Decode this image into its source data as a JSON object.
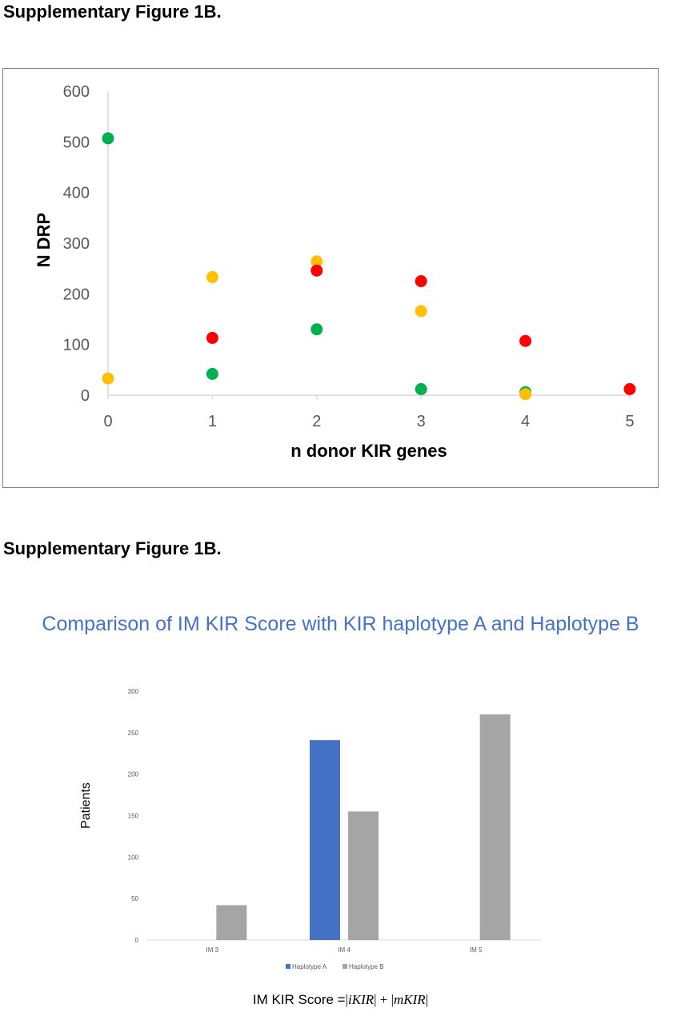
{
  "headings": {
    "top": "Supplementary Figure 1B.",
    "bottom": "Supplementary Figure 1B."
  },
  "chart_data": [
    {
      "type": "scatter",
      "xlabel": "n donor KIR genes",
      "ylabel": "N DRP",
      "xlim": [
        0,
        5
      ],
      "ylim": [
        0,
        600
      ],
      "x_ticks": [
        "0",
        "1",
        "2",
        "3",
        "4",
        "5"
      ],
      "y_ticks": [
        "0",
        "100",
        "200",
        "300",
        "400",
        "500",
        "600"
      ],
      "grid": false,
      "series": [
        {
          "color": "#00B050",
          "points": [
            [
              0,
              507
            ],
            [
              1,
              42
            ],
            [
              2,
              130
            ],
            [
              3,
              12
            ],
            [
              4,
              6
            ]
          ]
        },
        {
          "color": "#FFC000",
          "points": [
            [
              0,
              33
            ],
            [
              1,
              233
            ],
            [
              2,
              264
            ],
            [
              3,
              166
            ],
            [
              4,
              2
            ]
          ]
        },
        {
          "color": "#FF0000",
          "points": [
            [
              1,
              113
            ],
            [
              2,
              246
            ],
            [
              3,
              225
            ],
            [
              4,
              107
            ],
            [
              5,
              12
            ]
          ]
        }
      ]
    },
    {
      "type": "bar",
      "title": "Comparison of IM KIR Score with KIR haplotype A and Haplotype B",
      "categories": [
        "IM 3",
        "IM 4",
        "IM 5"
      ],
      "ylabel": "Patients",
      "ylim": [
        0,
        300
      ],
      "y_ticks": [
        "0",
        "50",
        "100",
        "150",
        "200",
        "250",
        "300"
      ],
      "grid": false,
      "legend": "bottom",
      "series": [
        {
          "name": "Haplotype A",
          "color": "#4472C4",
          "values": [
            0,
            241,
            0
          ]
        },
        {
          "name": "Haplotype B",
          "color": "#A5A5A5",
          "values": [
            42,
            155,
            272
          ]
        }
      ],
      "xlabel_formula": {
        "prefix": "IM KIR Score =",
        "bar1": "|",
        "term1": "iKIR",
        "bar2": "|",
        "plus": " + ",
        "bar3": "|",
        "term2": "mKIR",
        "bar4": "|"
      }
    }
  ]
}
